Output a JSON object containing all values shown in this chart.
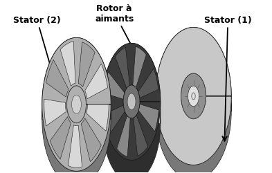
{
  "bg_color": "#f2f2f2",
  "labels": {
    "stator2": "Stator (2)",
    "rotor": "Rotor à\naimants",
    "stator1": "Stator (1)"
  },
  "colors": {
    "white": "#ffffff",
    "stator_face_light": "#c8c8c8",
    "stator_face_mid": "#b0b0b0",
    "stator_side": "#8a8a8a",
    "stator_back": "#787878",
    "stator_tooth_light": "#d8d8d8",
    "stator_tooth_dark": "#a0a0a0",
    "stator_slot": "#b8b8b8",
    "rotor_face": "#3a3a3a",
    "rotor_side": "#282828",
    "rotor_magnet_light": "#888888",
    "rotor_magnet_dark": "#585858",
    "hub_light": "#e0e0e0",
    "hub_dark": "#909090",
    "edge_dark": "#1a1a1a",
    "edge_mid": "#303030"
  },
  "fontsize": 9,
  "fontweight": "bold"
}
